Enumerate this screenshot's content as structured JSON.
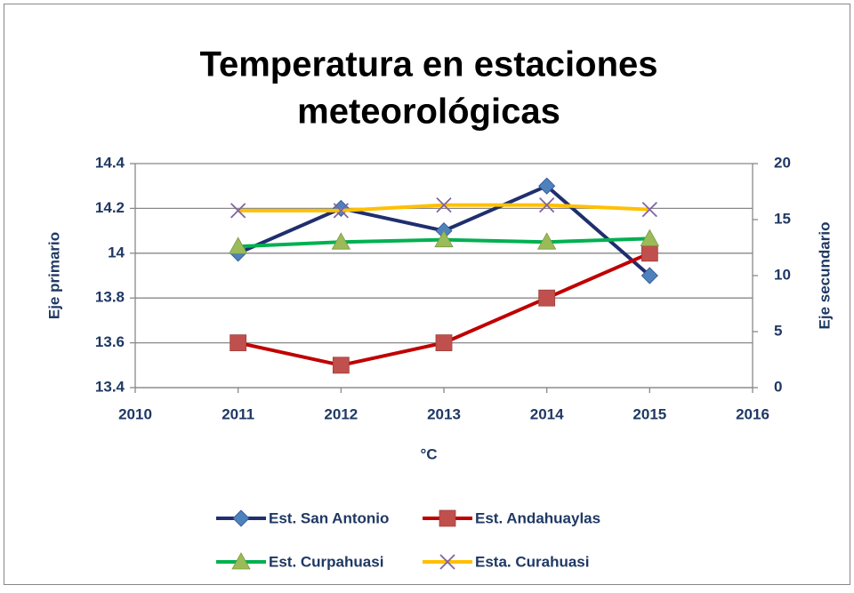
{
  "chart_data": {
    "type": "line",
    "title": [
      "Temperatura en estaciones",
      "meteorológicas"
    ],
    "x_label": "°C",
    "y_label": "Eje primario",
    "y2_label": "Eje secundario",
    "x": [
      2011,
      2012,
      2013,
      2014,
      2015
    ],
    "xlim": [
      2010,
      2016
    ],
    "xticks": [
      2010,
      2011,
      2012,
      2013,
      2014,
      2015,
      2016
    ],
    "ylim": [
      13.4,
      14.4
    ],
    "yticks": [
      13.4,
      13.6,
      13.8,
      14,
      14.2,
      14.4
    ],
    "y2lim": [
      0,
      20
    ],
    "y2ticks": [
      0,
      5,
      10,
      15,
      20
    ],
    "grid": true,
    "legend": "bottom",
    "series": [
      {
        "name": "Est. San Antonio",
        "color": "#1f2f6e",
        "marker": "diamond",
        "marker_color": "#4f81bd",
        "axis": "y",
        "values": [
          14.0,
          14.2,
          14.1,
          14.3,
          13.9
        ]
      },
      {
        "name": "Est. Andahuaylas",
        "color": "#c00000",
        "marker": "square",
        "marker_color": "#c0504d",
        "axis": "y",
        "values": [
          13.6,
          13.5,
          13.6,
          13.8,
          14.0
        ]
      },
      {
        "name": "Est. Curpahuasi",
        "color": "#00b050",
        "marker": "triangle",
        "marker_color": "#9bbb59",
        "axis": "y2",
        "values": [
          12.6,
          13.0,
          13.2,
          13.0,
          13.3
        ]
      },
      {
        "name": "Esta. Curahuasi",
        "color": "#ffc000",
        "marker": "x",
        "marker_color": "#8064a2",
        "axis": "y2",
        "values": [
          15.8,
          15.8,
          16.3,
          16.3,
          15.9
        ]
      }
    ]
  }
}
